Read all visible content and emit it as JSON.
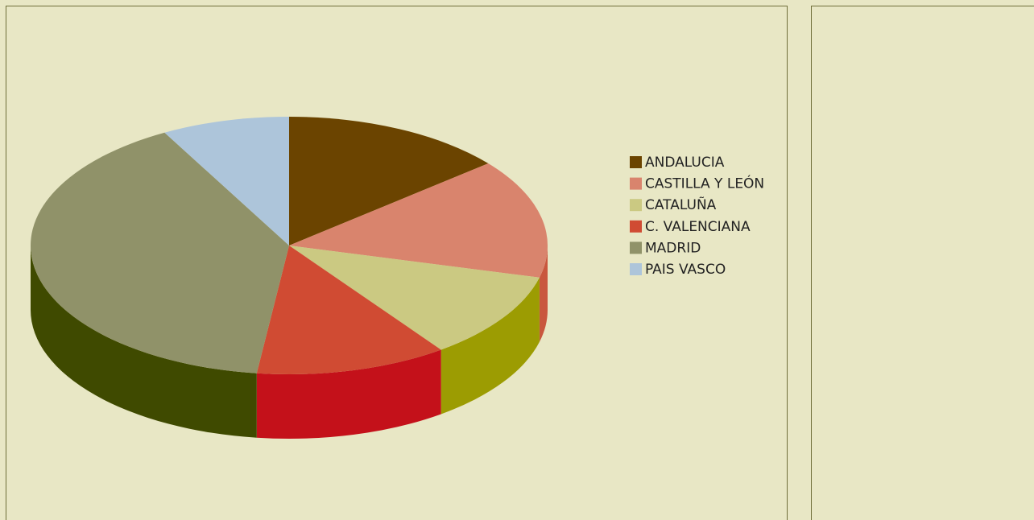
{
  "chart_data": {
    "type": "pie",
    "categories": [
      "ANDALUCIA",
      "CASTILLA Y LEÓN",
      "CATALUÑA",
      "C. VALENCIANA",
      "MADRID",
      "PAIS VASCO"
    ],
    "values": [
      14,
      15,
      11,
      12,
      40,
      8
    ],
    "colors": [
      "#6b4400",
      "#d9846d",
      "#cbc982",
      "#d04b33",
      "#909269",
      "#adc5da"
    ],
    "side_colors": [
      "#4a2f00",
      "#c9573e",
      "#9c9c02",
      "#c4111a",
      "#3f4a00",
      "#7f98ad"
    ],
    "legend": "right"
  }
}
